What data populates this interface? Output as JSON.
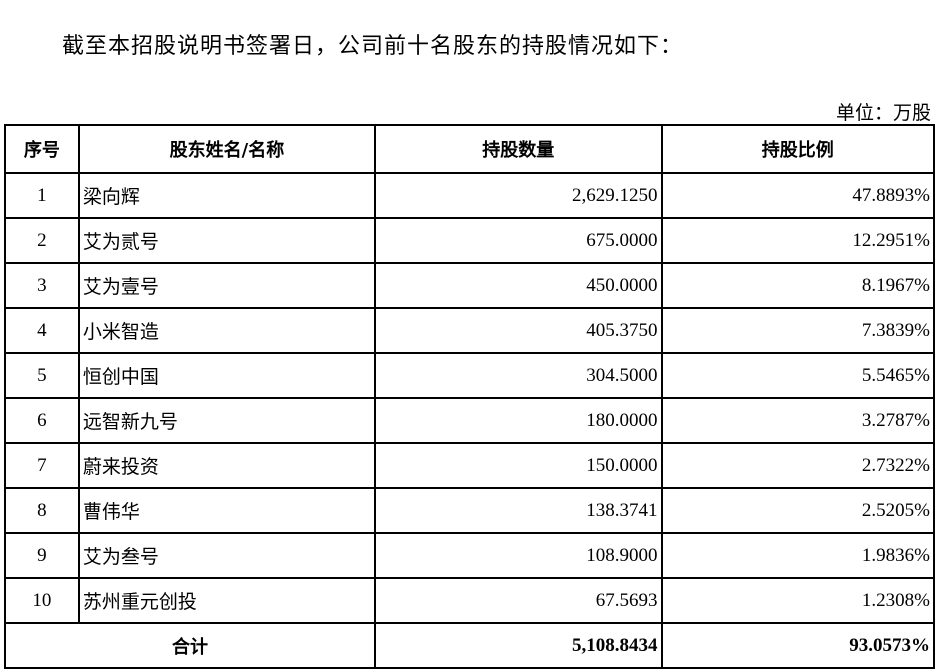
{
  "intro": "截至本招股说明书签署日，公司前十名股东的持股情况如下：",
  "unit": "单位：万股",
  "table": {
    "headers": [
      "序号",
      "股东姓名/名称",
      "持股数量",
      "持股比例"
    ],
    "rows": [
      [
        "1",
        "梁向辉",
        "2,629.1250",
        "47.8893%"
      ],
      [
        "2",
        "艾为贰号",
        "675.0000",
        "12.2951%"
      ],
      [
        "3",
        "艾为壹号",
        "450.0000",
        "8.1967%"
      ],
      [
        "4",
        "小米智造",
        "405.3750",
        "7.3839%"
      ],
      [
        "5",
        "恒创中国",
        "304.5000",
        "5.5465%"
      ],
      [
        "6",
        "远智新九号",
        "180.0000",
        "3.2787%"
      ],
      [
        "7",
        "蔚来投资",
        "150.0000",
        "2.7322%"
      ],
      [
        "8",
        "曹伟华",
        "138.3741",
        "2.5205%"
      ],
      [
        "9",
        "艾为叁号",
        "108.9000",
        "1.9836%"
      ],
      [
        "10",
        "苏州重元创投",
        "67.5693",
        "1.2308%"
      ]
    ],
    "total": {
      "label": "合计",
      "shares": "5,108.8434",
      "ratio": "93.0573%"
    }
  }
}
